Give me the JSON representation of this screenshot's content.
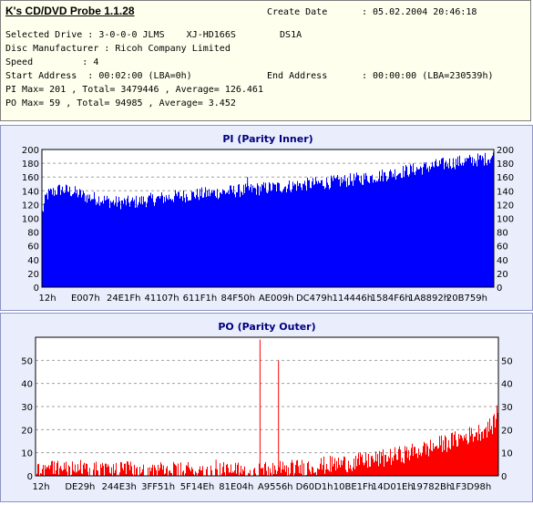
{
  "app_title": "K's CD/DVD Probe 1.1.28",
  "info": {
    "create_date_label": "Create Date",
    "create_date_value": ": 05.02.2004 20:46:18",
    "selected_drive_line": "Selected Drive : 3-0-0-0 JLMS    XJ-HD166S        DS1A",
    "disc_manufacturer_line": "Disc Manufacturer : Ricoh Company Limited",
    "speed_line": "Speed         : 4",
    "start_address_line": "Start Address  : 00:02:00 (LBA=0h)",
    "end_address_label": "End Address",
    "end_address_value": ": 00:00:00 (LBA=230539h)",
    "pi_line": "PI Max= 201 , Total= 3479446 , Average= 126.461",
    "po_line": "PO Max= 59 , Total= 94985 , Average= 3.452"
  },
  "colors": {
    "pi": "#0000ff",
    "po": "#ff0000",
    "title": "#000080",
    "panel": "#eaeefc"
  },
  "chart_data": [
    {
      "type": "area",
      "title": "PI (Parity Inner)",
      "ylim": [
        0,
        200
      ],
      "yticks": [
        0,
        20,
        40,
        60,
        80,
        100,
        120,
        140,
        160,
        180,
        200
      ],
      "x_tick_labels": [
        "12h",
        "E007h",
        "24E1Fh",
        "41107h",
        "611F1h",
        "84F50h",
        "AE009h",
        "DC479h",
        "114446h",
        "1584F6h",
        "1A8892h",
        "20B759h"
      ],
      "grid": true,
      "series": [
        {
          "x_pct": [
            0,
            1,
            2,
            4,
            6,
            8,
            10,
            13,
            16,
            20,
            25,
            30,
            35,
            40,
            45,
            50,
            55,
            60,
            65,
            70,
            75,
            80,
            85,
            90,
            95,
            98,
            100
          ],
          "values": [
            105,
            133,
            137,
            142,
            140,
            136,
            131,
            128,
            123,
            123,
            128,
            132,
            135,
            138,
            141,
            144,
            147,
            150,
            153,
            157,
            162,
            168,
            174,
            180,
            184,
            186,
            190
          ],
          "noise": 10,
          "spikes": [
            {
              "x_pct": 45.5,
              "value": 160
            }
          ]
        }
      ]
    },
    {
      "type": "area",
      "title": "PO (Parity Outer)",
      "ylim": [
        0,
        60
      ],
      "yticks": [
        0,
        10,
        20,
        30,
        40,
        50
      ],
      "x_tick_labels": [
        "12h",
        "DE29h",
        "244E3h",
        "3FF51h",
        "5F14Eh",
        "81E04h",
        "A9556h",
        "D60D1h",
        "10BE1Fh",
        "14D01Eh",
        "19782Bh",
        "1F3D98h"
      ],
      "grid": true,
      "series": [
        {
          "x_pct": [
            0,
            1,
            3,
            6,
            10,
            15,
            20,
            30,
            40,
            48,
            55,
            60,
            65,
            70,
            75,
            80,
            85,
            90,
            93,
            96,
            99,
            100
          ],
          "values": [
            2,
            3,
            4,
            3.5,
            3,
            2.5,
            2.5,
            2,
            2,
            2,
            3,
            4,
            5,
            6,
            7.5,
            9.5,
            12,
            15,
            17,
            19,
            22,
            30
          ],
          "noise": 4,
          "spikes": [
            {
              "x_pct": 48.5,
              "value": 59
            },
            {
              "x_pct": 52.5,
              "value": 50
            },
            {
              "x_pct": 39.0,
              "value": 7
            }
          ]
        }
      ]
    }
  ]
}
